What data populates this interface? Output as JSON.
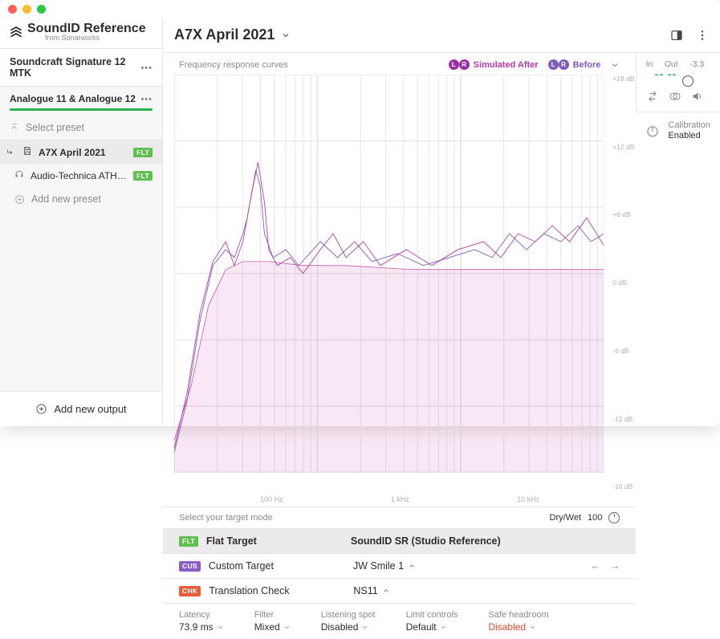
{
  "window": {
    "traffic_light_colors": [
      "#ff5f57",
      "#febc2e",
      "#28c840"
    ]
  },
  "brand": {
    "name": "SoundID Reference",
    "sub": "from Sonarworks"
  },
  "sidebar": {
    "device": "Soundcraft Signature 12 MTK",
    "channel": "Analogue 11 & Analogue 12",
    "select_preset": "Select preset",
    "presets": [
      {
        "label": "A7X April 2021",
        "badge": "FLT",
        "selected": true,
        "icon": "save"
      },
      {
        "label": "Audio-Technica ATH-M...",
        "badge": "FLT",
        "selected": false,
        "icon": "headphones"
      }
    ],
    "add_preset": "Add new preset",
    "add_output": "Add new output"
  },
  "header": {
    "title": "A7X April 2021"
  },
  "graph": {
    "legend_label": "Frequency response curves",
    "legend": [
      {
        "label": "Simulated After",
        "color": "#b93aa3"
      },
      {
        "label": "Before",
        "color": "#7d5bb9"
      }
    ],
    "y_ticks": [
      "+18 dB",
      "+12 dB",
      "+6 dB",
      "0 dB",
      "-6 dB",
      "-12 dB",
      "-18 dB"
    ],
    "x_ticks": [
      "100 Hz",
      "1 kHz",
      "10 kHz"
    ],
    "curves": {
      "target": {
        "color": "#c73aa8",
        "width": 2,
        "points": [
          [
            0.0,
            0.92
          ],
          [
            0.04,
            0.78
          ],
          [
            0.08,
            0.58
          ],
          [
            0.12,
            0.49
          ],
          [
            0.16,
            0.47
          ],
          [
            0.22,
            0.47
          ],
          [
            0.3,
            0.48
          ],
          [
            0.4,
            0.48
          ],
          [
            0.55,
            0.49
          ],
          [
            0.7,
            0.49
          ],
          [
            0.85,
            0.49
          ],
          [
            1.0,
            0.49
          ]
        ]
      },
      "before": {
        "color": "#7d5bb9",
        "width": 2.5,
        "points": [
          [
            0.0,
            0.95
          ],
          [
            0.03,
            0.82
          ],
          [
            0.06,
            0.62
          ],
          [
            0.09,
            0.48
          ],
          [
            0.12,
            0.44
          ],
          [
            0.14,
            0.46
          ],
          [
            0.16,
            0.4
          ],
          [
            0.17,
            0.36
          ],
          [
            0.19,
            0.24
          ],
          [
            0.2,
            0.28
          ],
          [
            0.21,
            0.4
          ],
          [
            0.23,
            0.46
          ],
          [
            0.26,
            0.44
          ],
          [
            0.29,
            0.48
          ],
          [
            0.34,
            0.42
          ],
          [
            0.38,
            0.46
          ],
          [
            0.42,
            0.42
          ],
          [
            0.46,
            0.47
          ],
          [
            0.52,
            0.45
          ],
          [
            0.58,
            0.48
          ],
          [
            0.64,
            0.46
          ],
          [
            0.7,
            0.44
          ],
          [
            0.74,
            0.46
          ],
          [
            0.78,
            0.4
          ],
          [
            0.82,
            0.44
          ],
          [
            0.86,
            0.4
          ],
          [
            0.9,
            0.42
          ],
          [
            0.94,
            0.38
          ],
          [
            0.97,
            0.42
          ],
          [
            1.0,
            0.4
          ]
        ]
      },
      "after": {
        "color": "#b93aa3",
        "width": 2.5,
        "points": [
          [
            0.0,
            0.94
          ],
          [
            0.03,
            0.8
          ],
          [
            0.06,
            0.6
          ],
          [
            0.09,
            0.47
          ],
          [
            0.12,
            0.42
          ],
          [
            0.14,
            0.48
          ],
          [
            0.16,
            0.42
          ],
          [
            0.18,
            0.3
          ],
          [
            0.195,
            0.22
          ],
          [
            0.21,
            0.32
          ],
          [
            0.22,
            0.44
          ],
          [
            0.24,
            0.48
          ],
          [
            0.27,
            0.46
          ],
          [
            0.3,
            0.5
          ],
          [
            0.34,
            0.44
          ],
          [
            0.37,
            0.4
          ],
          [
            0.4,
            0.46
          ],
          [
            0.44,
            0.42
          ],
          [
            0.48,
            0.48
          ],
          [
            0.54,
            0.44
          ],
          [
            0.6,
            0.48
          ],
          [
            0.66,
            0.44
          ],
          [
            0.72,
            0.42
          ],
          [
            0.76,
            0.46
          ],
          [
            0.8,
            0.4
          ],
          [
            0.84,
            0.42
          ],
          [
            0.88,
            0.38
          ],
          [
            0.92,
            0.42
          ],
          [
            0.96,
            0.36
          ],
          [
            1.0,
            0.43
          ]
        ]
      }
    },
    "fill_color": "rgba(199,58,168,0.12)",
    "grid_color": "#e8e8e8"
  },
  "target": {
    "header": "Select your target mode",
    "drywet_label": "Dry/Wet",
    "drywet_value": "100",
    "rows": [
      {
        "badge": "FLT",
        "badge_class": "flt",
        "name": "Flat Target",
        "preset": "SoundID SR (Studio Reference)",
        "chev": false,
        "selected": true
      },
      {
        "badge": "CUS",
        "badge_class": "cus",
        "name": "Custom Target",
        "preset": "JW Smile 1",
        "chev": true,
        "arrows": true,
        "selected": false
      },
      {
        "badge": "CHK",
        "badge_class": "chk",
        "name": "Translation Check",
        "preset": "NS11",
        "chev": true,
        "selected": false
      }
    ]
  },
  "status": {
    "items": [
      {
        "label": "Latency",
        "value": "73.9 ms",
        "chev": true
      },
      {
        "label": "Filter",
        "value": "Mixed",
        "chev": true
      },
      {
        "label": "Listening spot",
        "value": "Disabled",
        "chev": true
      },
      {
        "label": "Limit controls",
        "value": "Default",
        "chev": true
      },
      {
        "label": "Safe headroom",
        "value": "Disabled",
        "chev": true,
        "class": "disabled"
      }
    ]
  },
  "meters": {
    "labels": [
      "In",
      "Out",
      "-3.3"
    ]
  },
  "calibration": {
    "label": "Calibration",
    "state": "Enabled"
  }
}
